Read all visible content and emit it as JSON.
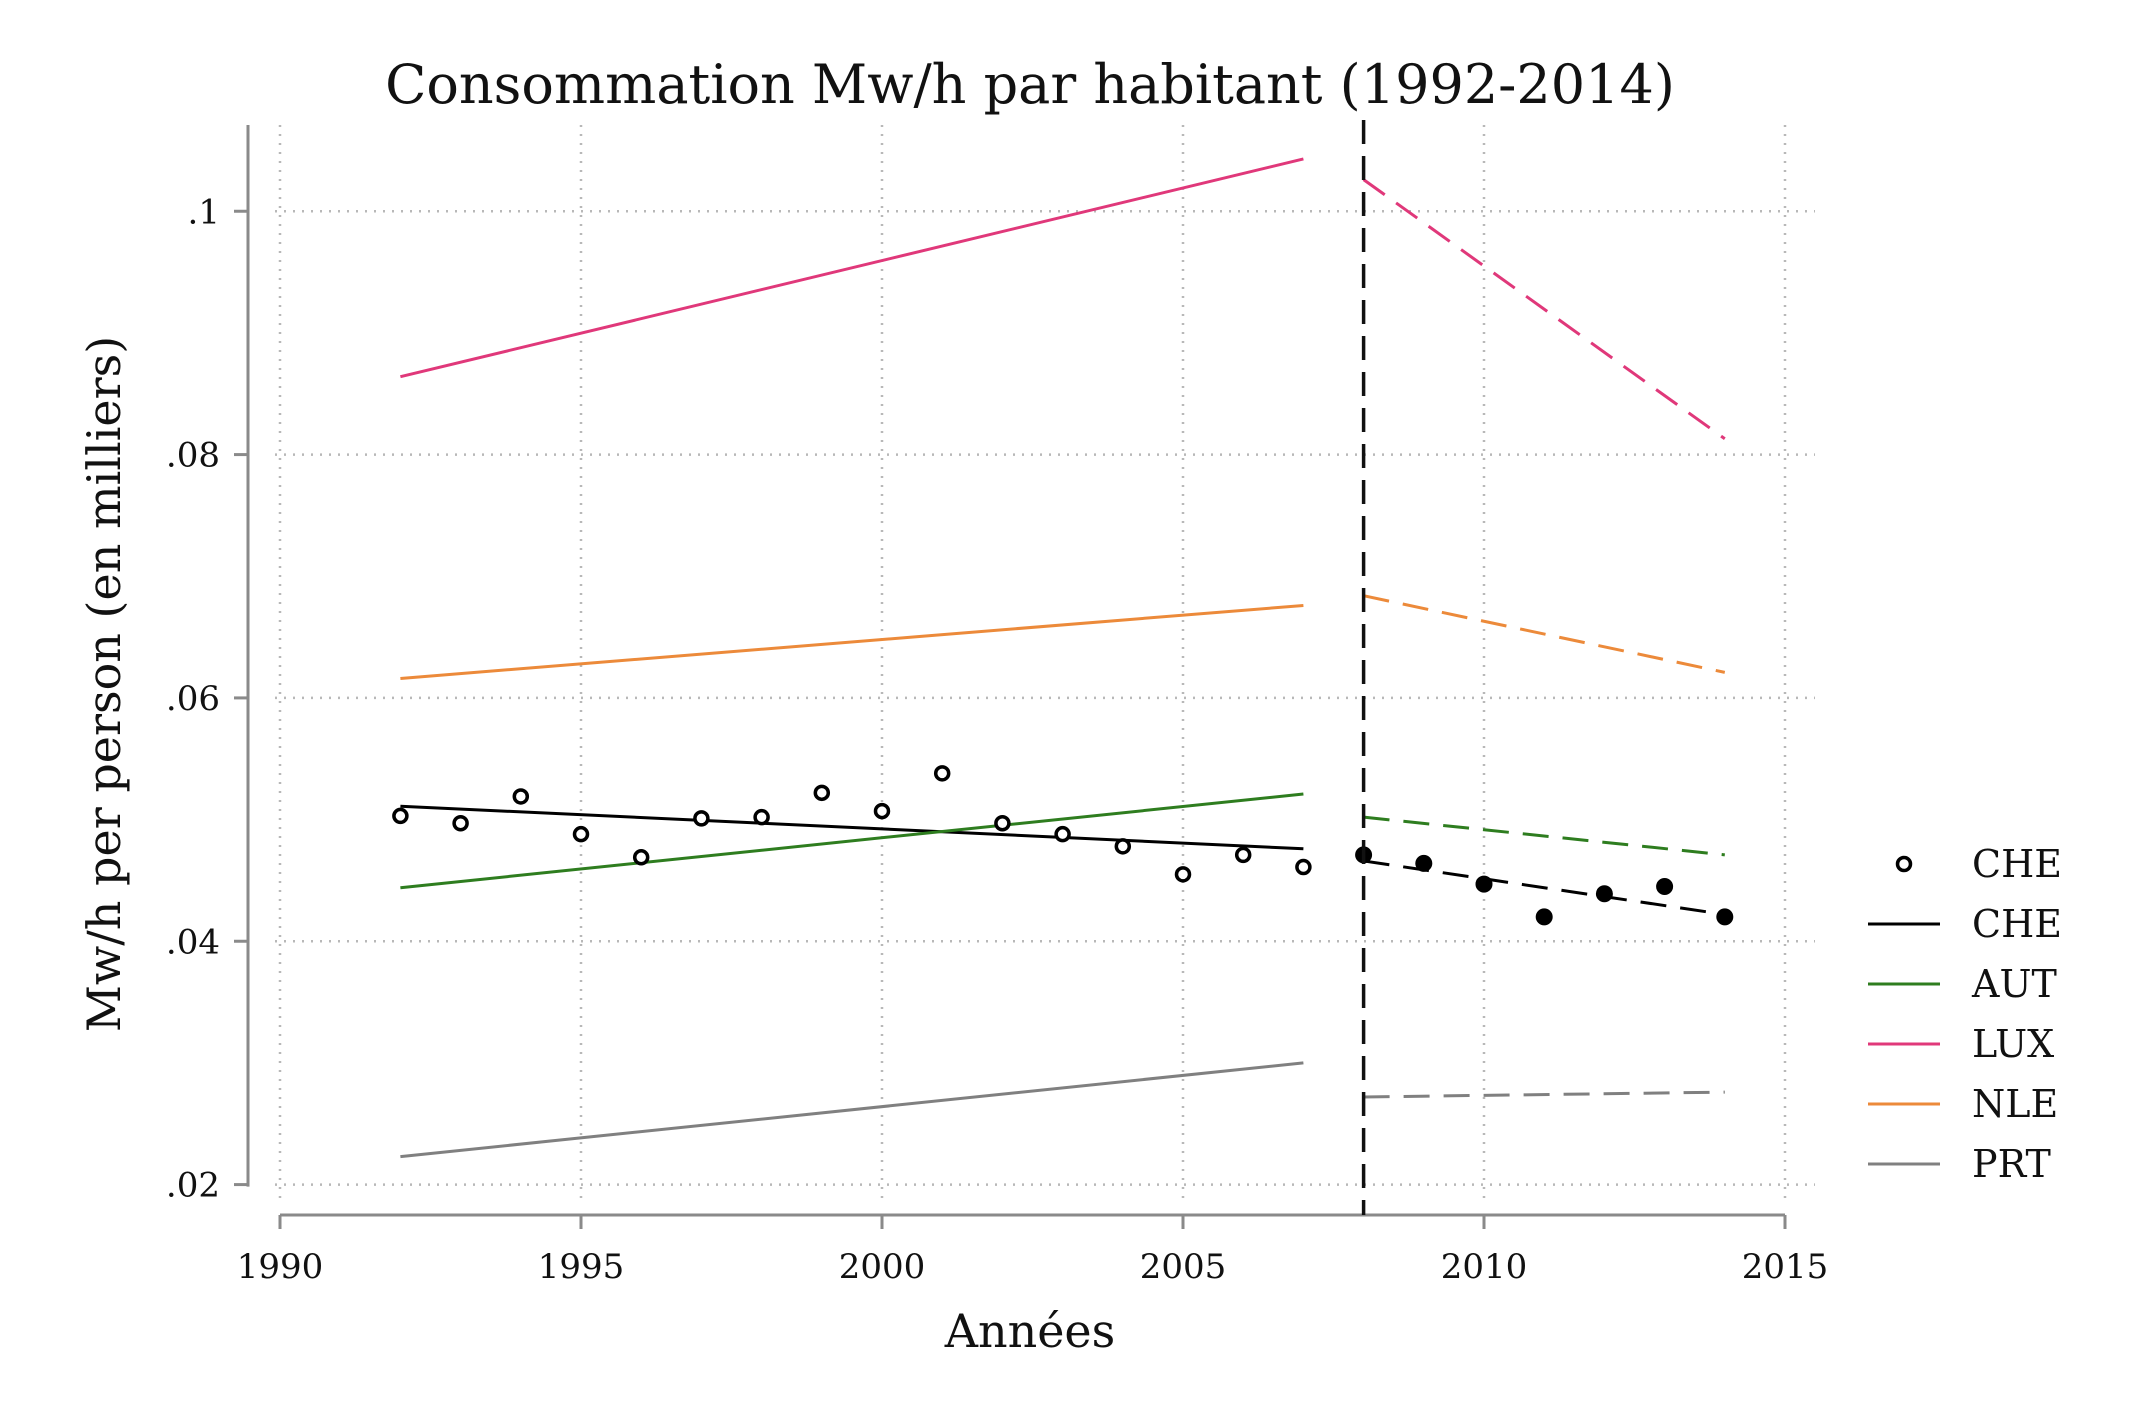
{
  "chart_data": {
    "type": "line",
    "title": "Consommation Mw/h par habitant (1992-2014)",
    "xlabel": "Années",
    "ylabel": "Mw/h per person (en milliers)",
    "xlim": [
      1990,
      2015
    ],
    "ylim": [
      0.0175,
      0.1075
    ],
    "x_ticks": [
      {
        "value": 1990,
        "label": "1990"
      },
      {
        "value": 1995,
        "label": "1995"
      },
      {
        "value": 2000,
        "label": "2000"
      },
      {
        "value": 2005,
        "label": "2005"
      },
      {
        "value": 2010,
        "label": "2010"
      },
      {
        "value": 2015,
        "label": "2015"
      }
    ],
    "y_ticks": [
      {
        "value": 0.02,
        "label": ".02"
      },
      {
        "value": 0.04,
        "label": ".04"
      },
      {
        "value": 0.06,
        "label": ".06"
      },
      {
        "value": 0.08,
        "label": ".08"
      },
      {
        "value": 0.1,
        "label": ".1"
      }
    ],
    "grid": true,
    "grid_style": "dotted",
    "cutoff_line": {
      "x": 2008,
      "style": "dashed",
      "color": "#111111"
    },
    "scatter": {
      "name": "CHE",
      "points": [
        {
          "x": 1992,
          "y": 0.0503
        },
        {
          "x": 1993,
          "y": 0.0497
        },
        {
          "x": 1994,
          "y": 0.0519
        },
        {
          "x": 1995,
          "y": 0.0488
        },
        {
          "x": 1996,
          "y": 0.0469
        },
        {
          "x": 1997,
          "y": 0.0501
        },
        {
          "x": 1998,
          "y": 0.0502
        },
        {
          "x": 1999,
          "y": 0.0522
        },
        {
          "x": 2000,
          "y": 0.0507
        },
        {
          "x": 2001,
          "y": 0.0538
        },
        {
          "x": 2002,
          "y": 0.0497
        },
        {
          "x": 2003,
          "y": 0.0488
        },
        {
          "x": 2004,
          "y": 0.0478
        },
        {
          "x": 2005,
          "y": 0.0455
        },
        {
          "x": 2006,
          "y": 0.0471
        },
        {
          "x": 2007,
          "y": 0.0461
        },
        {
          "x": 2008,
          "y": 0.0471
        },
        {
          "x": 2009,
          "y": 0.0464
        },
        {
          "x": 2010,
          "y": 0.0447
        },
        {
          "x": 2011,
          "y": 0.042
        },
        {
          "x": 2012,
          "y": 0.0439
        },
        {
          "x": 2013,
          "y": 0.0445
        },
        {
          "x": 2014,
          "y": 0.042
        }
      ],
      "hollow_before": 2008
    },
    "series": [
      {
        "name": "CHE",
        "color": "#000000",
        "pre": [
          [
            1992,
            0.0511
          ],
          [
            2007,
            0.0476
          ]
        ],
        "post": [
          [
            2008,
            0.0466
          ],
          [
            2014,
            0.0422
          ]
        ]
      },
      {
        "name": "AUT",
        "color": "#2e7d1f",
        "pre": [
          [
            1992,
            0.0444
          ],
          [
            2007,
            0.0521
          ]
        ],
        "post": [
          [
            2008,
            0.0502
          ],
          [
            2014,
            0.0471
          ]
        ]
      },
      {
        "name": "LUX",
        "color": "#e0387a",
        "pre": [
          [
            1992,
            0.0864
          ],
          [
            2007,
            0.1043
          ]
        ],
        "post": [
          [
            2008,
            0.1026
          ],
          [
            2014,
            0.0813
          ]
        ]
      },
      {
        "name": "NLE",
        "color": "#ec8a3a",
        "pre": [
          [
            1992,
            0.0616
          ],
          [
            2007,
            0.0676
          ]
        ],
        "post": [
          [
            2008,
            0.0684
          ],
          [
            2014,
            0.0621
          ]
        ]
      },
      {
        "name": "PRT",
        "color": "#808080",
        "pre": [
          [
            1992,
            0.0223
          ],
          [
            2007,
            0.03
          ]
        ],
        "post": [
          [
            2008,
            0.0272
          ],
          [
            2014,
            0.0276
          ]
        ]
      }
    ],
    "legend": {
      "position": "right",
      "entries": [
        {
          "label": "CHE",
          "kind": "marker",
          "color": "#000000"
        },
        {
          "label": "CHE",
          "kind": "line",
          "color": "#000000"
        },
        {
          "label": "AUT",
          "kind": "line",
          "color": "#2e7d1f"
        },
        {
          "label": "LUX",
          "kind": "line",
          "color": "#e0387a"
        },
        {
          "label": "NLE",
          "kind": "line",
          "color": "#ec8a3a"
        },
        {
          "label": "PRT",
          "kind": "line",
          "color": "#808080"
        }
      ]
    }
  }
}
